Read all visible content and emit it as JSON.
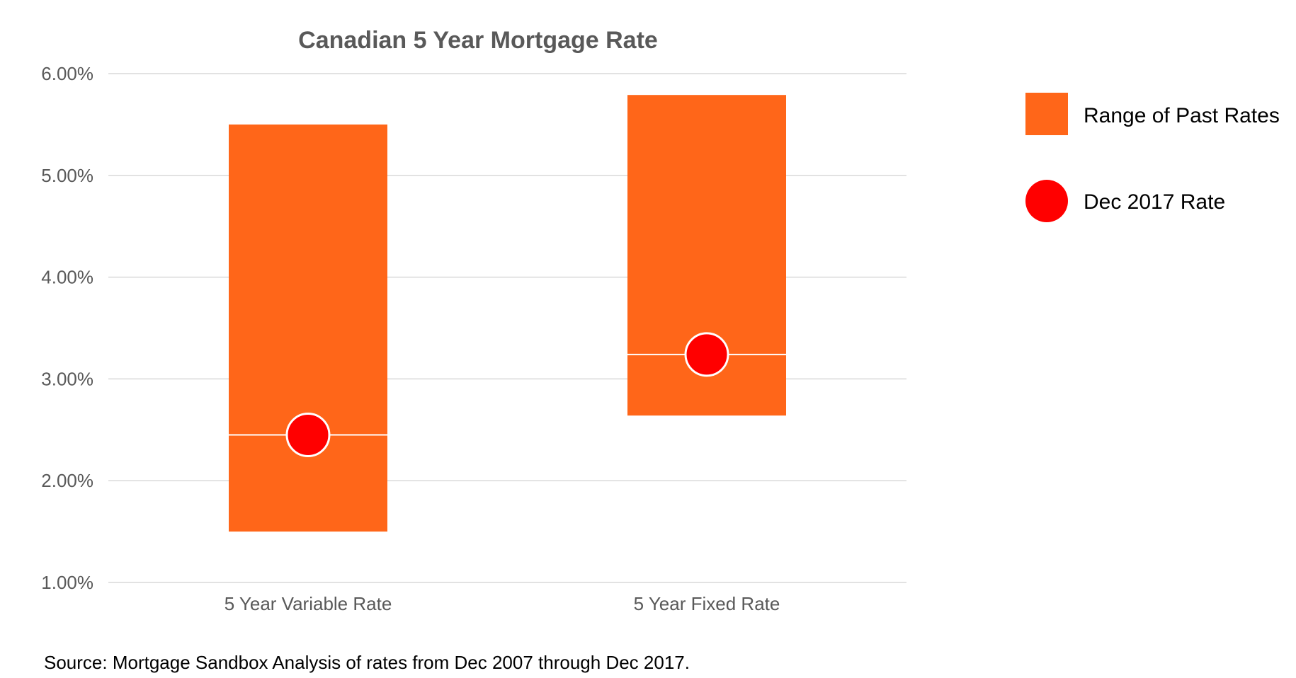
{
  "chart_data": {
    "type": "bar",
    "title": "Canadian 5 Year Mortgage Rate",
    "categories": [
      "5 Year Variable Rate",
      "5 Year Fixed Rate"
    ],
    "series": [
      {
        "name": "Range of Past Rates",
        "kind": "floating-bar",
        "low": [
          1.5,
          2.64
        ],
        "high": [
          5.5,
          5.79
        ]
      },
      {
        "name": "Dec 2017 Rate",
        "kind": "point",
        "values": [
          2.45,
          3.24
        ]
      }
    ],
    "y_ticks": [
      "6.00%",
      "5.00%",
      "4.00%",
      "3.00%",
      "2.00%",
      "1.00%"
    ],
    "ylim": [
      1.0,
      6.0
    ],
    "grid": true,
    "legend_position": "right",
    "colors": {
      "range": "#FF6619",
      "point": "#FF0000",
      "grid": "#D9D9D9",
      "title": "#595959"
    }
  },
  "source_note": "Source: Mortgage Sandbox Analysis of rates from Dec 2007 through Dec 2017."
}
